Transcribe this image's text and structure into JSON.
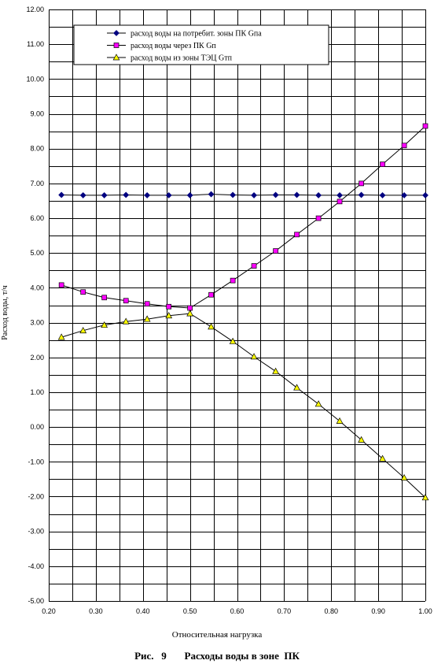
{
  "chart_data": {
    "type": "line",
    "xlabel": "Относительная нагрузка",
    "ylabel": "Расход воды, т/ч",
    "xlim": [
      0.2,
      1.0
    ],
    "ylim": [
      -5.0,
      12.0
    ],
    "x_ticks": [
      0.2,
      0.3,
      0.4,
      0.5,
      0.6,
      0.7,
      0.8,
      0.9,
      1.0
    ],
    "y_ticks": [
      -5,
      -4,
      -3,
      -2,
      -1,
      0,
      1,
      2,
      3,
      4,
      5,
      6,
      7,
      8,
      9,
      10,
      11,
      12
    ],
    "x_minor_step": 0.05,
    "y_minor_step": 0.5,
    "grid": true,
    "legend_position": "top",
    "x": [
      0.227,
      0.273,
      0.318,
      0.364,
      0.409,
      0.455,
      0.5,
      0.545,
      0.591,
      0.636,
      0.682,
      0.727,
      0.773,
      0.818,
      0.864,
      0.909,
      0.955,
      1.0
    ],
    "series": [
      {
        "name": "расход воды на потребит. зоны ПК Gпа",
        "marker": "diamond",
        "color": "#000080",
        "values": [
          6.67,
          6.66,
          6.66,
          6.67,
          6.66,
          6.66,
          6.66,
          6.69,
          6.67,
          6.66,
          6.67,
          6.67,
          6.66,
          6.66,
          6.67,
          6.66,
          6.66,
          6.66
        ]
      },
      {
        "name": "расход воды через ПК Gп",
        "marker": "square",
        "color": "#ff00ff",
        "values": [
          4.08,
          3.88,
          3.72,
          3.63,
          3.54,
          3.46,
          3.42,
          3.8,
          4.21,
          4.63,
          5.06,
          5.53,
          6.0,
          6.48,
          7.0,
          7.55,
          8.09,
          8.65
        ]
      },
      {
        "name": "расход воды из зоны ТЭЦ Gтп",
        "marker": "triangle",
        "color": "#ffff00",
        "values": [
          2.58,
          2.77,
          2.93,
          3.03,
          3.1,
          3.2,
          3.26,
          2.88,
          2.46,
          2.02,
          1.6,
          1.13,
          0.66,
          0.17,
          -0.37,
          -0.91,
          -1.46,
          -2.03
        ]
      }
    ]
  },
  "caption": "Рис.   9       Расходы воды в зоне  ПК"
}
